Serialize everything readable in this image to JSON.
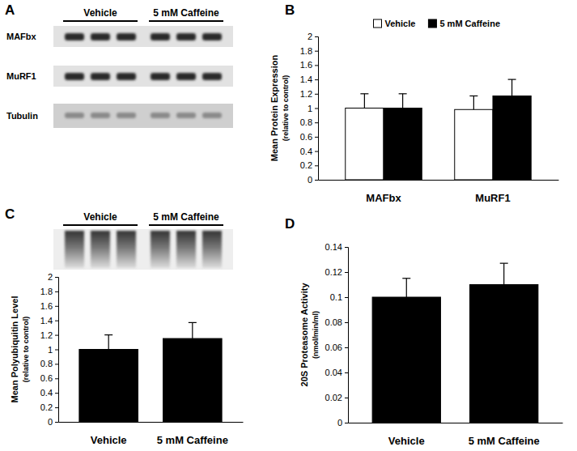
{
  "chart_data": [
    {
      "type": "bar",
      "ylabel": [
        "Mean Protein Expression",
        "(relative to control)"
      ],
      "categories": [
        "MAFbx",
        "MuRF1"
      ],
      "series": [
        {
          "name": "Vehicle",
          "color": "#ffffff",
          "values": [
            1.0,
            0.98
          ],
          "errors": [
            0.2,
            0.19
          ]
        },
        {
          "name": "5 mM Caffeine",
          "color": "#000000",
          "values": [
            1.0,
            1.17
          ],
          "errors": [
            0.2,
            0.23
          ]
        }
      ],
      "ylim": [
        0,
        2
      ],
      "yticks": [
        0,
        0.2,
        0.4,
        0.6,
        0.8,
        1,
        1.2,
        1.4,
        1.6,
        1.8,
        2
      ],
      "legend": "top"
    },
    {
      "type": "bar",
      "ylabel": [
        "Mean Polyubiquitin Level",
        "(relative to control)"
      ],
      "categories": [
        "Vehicle",
        "5 mM Caffeine"
      ],
      "values": [
        1.0,
        1.15
      ],
      "errors": [
        0.2,
        0.22
      ],
      "color": "#000000",
      "ylim": [
        0,
        2
      ],
      "yticks": [
        0,
        0.2,
        0.4,
        0.6,
        0.8,
        1,
        1.2,
        1.4,
        1.6,
        1.8,
        2
      ]
    },
    {
      "type": "bar",
      "ylabel": [
        "20S Proteasome Activity",
        "(nmol/min/ml)"
      ],
      "categories": [
        "Vehicle",
        "5 mM Caffeine"
      ],
      "values": [
        0.1,
        0.11
      ],
      "errors": [
        0.015,
        0.017
      ],
      "color": "#000000",
      "ylim": [
        0,
        0.14
      ],
      "yticks": [
        0,
        0.02,
        0.04,
        0.06,
        0.08,
        0.1,
        0.12,
        0.14
      ]
    }
  ],
  "panel_labels": [
    "A",
    "B",
    "C",
    "D"
  ],
  "blots": {
    "A": {
      "groups": [
        "Vehicle",
        "5 mM Caffeine"
      ],
      "rows": [
        "MAFbx",
        "MuRF1",
        "Tubulin"
      ]
    },
    "C": {
      "groups": [
        "Vehicle",
        "5 mM Caffeine"
      ]
    }
  }
}
